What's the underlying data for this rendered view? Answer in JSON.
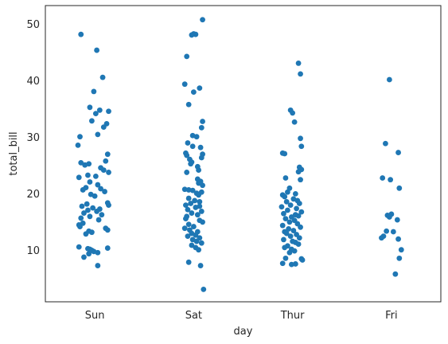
{
  "chart_data": {
    "type": "scatter",
    "style": "strip plot with jitter",
    "xlabel": "day",
    "ylabel": "total_bill",
    "categories": [
      "Sun",
      "Sat",
      "Thur",
      "Fri"
    ],
    "ylim": [
      0.9,
      53.3
    ],
    "yticks": [
      10,
      20,
      30,
      40,
      50
    ],
    "grid": false,
    "legend": "none",
    "point_color": "#1f77b4",
    "frame_color": "#262626",
    "points": {
      "Sun": [
        {
          "y": 48.2,
          "j": -0.14
        },
        {
          "y": 45.4,
          "j": 0.02
        },
        {
          "y": 40.6,
          "j": 0.08
        },
        {
          "y": 38.1,
          "j": -0.01
        },
        {
          "y": 35.3,
          "j": -0.05
        },
        {
          "y": 34.8,
          "j": 0.05
        },
        {
          "y": 34.6,
          "j": 0.14
        },
        {
          "y": 34.2,
          "j": 0.01
        },
        {
          "y": 32.9,
          "j": -0.03
        },
        {
          "y": 32.4,
          "j": 0.12
        },
        {
          "y": 31.8,
          "j": 0.09
        },
        {
          "y": 30.5,
          "j": 0.03
        },
        {
          "y": 30.1,
          "j": -0.15
        },
        {
          "y": 28.6,
          "j": -0.17
        },
        {
          "y": 27.0,
          "j": 0.13
        },
        {
          "y": 25.8,
          "j": 0.11
        },
        {
          "y": 25.5,
          "j": -0.14
        },
        {
          "y": 25.3,
          "j": -0.06
        },
        {
          "y": 25.1,
          "j": -0.1
        },
        {
          "y": 24.6,
          "j": 0.06
        },
        {
          "y": 24.2,
          "j": 0.09
        },
        {
          "y": 23.8,
          "j": 0.14
        },
        {
          "y": 23.3,
          "j": -0.07
        },
        {
          "y": 23.1,
          "j": 0.01
        },
        {
          "y": 22.9,
          "j": -0.16
        },
        {
          "y": 22.1,
          "j": -0.05
        },
        {
          "y": 21.6,
          "j": 0.03
        },
        {
          "y": 21.1,
          "j": -0.09
        },
        {
          "y": 20.9,
          "j": 0.06
        },
        {
          "y": 20.7,
          "j": -0.12
        },
        {
          "y": 20.4,
          "j": 0.1
        },
        {
          "y": 19.9,
          "j": -0.04
        },
        {
          "y": 19.6,
          "j": 0.0
        },
        {
          "y": 18.4,
          "j": 0.13
        },
        {
          "y": 18.2,
          "j": -0.08
        },
        {
          "y": 18.0,
          "j": 0.14
        },
        {
          "y": 17.8,
          "j": -0.13
        },
        {
          "y": 17.5,
          "j": -0.02
        },
        {
          "y": 17.3,
          "j": 0.05
        },
        {
          "y": 17.1,
          "j": -0.07
        },
        {
          "y": 16.9,
          "j": 0.02
        },
        {
          "y": 16.6,
          "j": -0.11
        },
        {
          "y": 16.3,
          "j": 0.07
        },
        {
          "y": 16.0,
          "j": -0.05
        },
        {
          "y": 15.7,
          "j": -0.14
        },
        {
          "y": 15.4,
          "j": 0.04
        },
        {
          "y": 14.8,
          "j": -0.12
        },
        {
          "y": 14.5,
          "j": -0.16
        },
        {
          "y": 14.2,
          "j": -0.15
        },
        {
          "y": 13.9,
          "j": 0.11
        },
        {
          "y": 13.6,
          "j": 0.13
        },
        {
          "y": 13.4,
          "j": -0.06
        },
        {
          "y": 13.2,
          "j": -0.03
        },
        {
          "y": 12.9,
          "j": -0.09
        },
        {
          "y": 10.6,
          "j": -0.16
        },
        {
          "y": 10.4,
          "j": 0.13
        },
        {
          "y": 10.3,
          "j": -0.07
        },
        {
          "y": 10.2,
          "j": -0.05
        },
        {
          "y": 10.0,
          "j": -0.03
        },
        {
          "y": 9.8,
          "j": -0.01
        },
        {
          "y": 9.6,
          "j": 0.03
        },
        {
          "y": 9.4,
          "j": -0.06
        },
        {
          "y": 8.8,
          "j": -0.11
        },
        {
          "y": 7.3,
          "j": 0.03
        }
      ],
      "Sat": [
        {
          "y": 50.8,
          "j": 0.09
        },
        {
          "y": 48.3,
          "j": 0.0
        },
        {
          "y": 48.2,
          "j": 0.02
        },
        {
          "y": 48.1,
          "j": -0.02
        },
        {
          "y": 44.3,
          "j": -0.07
        },
        {
          "y": 39.4,
          "j": -0.09
        },
        {
          "y": 38.7,
          "j": 0.06
        },
        {
          "y": 38.0,
          "j": 0.0
        },
        {
          "y": 35.8,
          "j": -0.05
        },
        {
          "y": 32.8,
          "j": 0.09
        },
        {
          "y": 31.7,
          "j": 0.08
        },
        {
          "y": 30.3,
          "j": -0.01
        },
        {
          "y": 30.1,
          "j": 0.03
        },
        {
          "y": 29.0,
          "j": -0.06
        },
        {
          "y": 28.4,
          "j": -0.01
        },
        {
          "y": 28.2,
          "j": 0.07
        },
        {
          "y": 27.2,
          "j": -0.08
        },
        {
          "y": 27.0,
          "j": 0.09
        },
        {
          "y": 26.8,
          "j": -0.07
        },
        {
          "y": 26.4,
          "j": 0.08
        },
        {
          "y": 26.1,
          "j": -0.04
        },
        {
          "y": 25.6,
          "j": -0.02
        },
        {
          "y": 25.3,
          "j": -0.03
        },
        {
          "y": 24.8,
          "j": 0.04
        },
        {
          "y": 24.2,
          "j": 0.05
        },
        {
          "y": 23.8,
          "j": -0.07
        },
        {
          "y": 22.6,
          "j": 0.04
        },
        {
          "y": 22.2,
          "j": 0.07
        },
        {
          "y": 21.9,
          "j": 0.05
        },
        {
          "y": 21.5,
          "j": 0.09
        },
        {
          "y": 20.8,
          "j": -0.09
        },
        {
          "y": 20.7,
          "j": -0.05
        },
        {
          "y": 20.6,
          "j": -0.01
        },
        {
          "y": 20.3,
          "j": 0.08
        },
        {
          "y": 20.1,
          "j": 0.03
        },
        {
          "y": 19.8,
          "j": 0.05
        },
        {
          "y": 19.2,
          "j": -0.05
        },
        {
          "y": 18.8,
          "j": 0.01
        },
        {
          "y": 18.6,
          "j": 0.06
        },
        {
          "y": 18.3,
          "j": -0.03
        },
        {
          "y": 18.0,
          "j": -0.08
        },
        {
          "y": 17.8,
          "j": 0.06
        },
        {
          "y": 17.6,
          "j": 0.02
        },
        {
          "y": 17.2,
          "j": -0.06
        },
        {
          "y": 16.9,
          "j": 0.08
        },
        {
          "y": 16.6,
          "j": -0.02
        },
        {
          "y": 16.3,
          "j": 0.04
        },
        {
          "y": 16.0,
          "j": -0.07
        },
        {
          "y": 15.6,
          "j": -0.08
        },
        {
          "y": 15.3,
          "j": 0.06
        },
        {
          "y": 15.0,
          "j": 0.09
        },
        {
          "y": 14.6,
          "j": -0.05
        },
        {
          "y": 14.2,
          "j": 0.0
        },
        {
          "y": 13.9,
          "j": -0.09
        },
        {
          "y": 13.6,
          "j": -0.04
        },
        {
          "y": 13.3,
          "j": 0.04
        },
        {
          "y": 13.0,
          "j": -0.02
        },
        {
          "y": 12.7,
          "j": 0.02
        },
        {
          "y": 12.5,
          "j": -0.06
        },
        {
          "y": 12.2,
          "j": 0.06
        },
        {
          "y": 11.9,
          "j": -0.01
        },
        {
          "y": 11.6,
          "j": 0.03
        },
        {
          "y": 11.3,
          "j": 0.08
        },
        {
          "y": 10.9,
          "j": -0.02
        },
        {
          "y": 10.5,
          "j": 0.02
        },
        {
          "y": 10.1,
          "j": 0.05
        },
        {
          "y": 7.9,
          "j": -0.05
        },
        {
          "y": 7.3,
          "j": 0.07
        },
        {
          "y": 3.1,
          "j": 0.1
        }
      ],
      "Thur": [
        {
          "y": 43.1,
          "j": 0.06
        },
        {
          "y": 41.2,
          "j": 0.08
        },
        {
          "y": 34.8,
          "j": -0.02
        },
        {
          "y": 34.3,
          "j": 0.0
        },
        {
          "y": 32.7,
          "j": 0.02
        },
        {
          "y": 29.8,
          "j": 0.08
        },
        {
          "y": 28.4,
          "j": 0.09
        },
        {
          "y": 27.2,
          "j": -0.1
        },
        {
          "y": 27.1,
          "j": -0.08
        },
        {
          "y": 24.7,
          "j": 0.07
        },
        {
          "y": 24.3,
          "j": 0.09
        },
        {
          "y": 23.9,
          "j": 0.06
        },
        {
          "y": 22.8,
          "j": -0.07
        },
        {
          "y": 22.5,
          "j": 0.08
        },
        {
          "y": 21.0,
          "j": -0.03
        },
        {
          "y": 20.3,
          "j": -0.05
        },
        {
          "y": 20.0,
          "j": 0.03
        },
        {
          "y": 19.8,
          "j": -0.1
        },
        {
          "y": 19.5,
          "j": -0.08
        },
        {
          "y": 19.1,
          "j": 0.01
        },
        {
          "y": 18.8,
          "j": 0.05
        },
        {
          "y": 18.6,
          "j": -0.06
        },
        {
          "y": 18.3,
          "j": 0.07
        },
        {
          "y": 18.0,
          "j": -0.02
        },
        {
          "y": 17.7,
          "j": -0.11
        },
        {
          "y": 17.4,
          "j": 0.04
        },
        {
          "y": 17.1,
          "j": -0.05
        },
        {
          "y": 16.8,
          "j": 0.09
        },
        {
          "y": 16.5,
          "j": -0.09
        },
        {
          "y": 16.3,
          "j": 0.03
        },
        {
          "y": 16.1,
          "j": 0.06
        },
        {
          "y": 15.9,
          "j": -0.01
        },
        {
          "y": 15.6,
          "j": -0.07
        },
        {
          "y": 15.3,
          "j": 0.02
        },
        {
          "y": 15.0,
          "j": -0.03
        },
        {
          "y": 14.7,
          "j": 0.05
        },
        {
          "y": 14.4,
          "j": -0.1
        },
        {
          "y": 14.1,
          "j": 0.08
        },
        {
          "y": 13.8,
          "j": -0.04
        },
        {
          "y": 13.5,
          "j": 0.01
        },
        {
          "y": 13.3,
          "j": -0.08
        },
        {
          "y": 13.0,
          "j": -0.06
        },
        {
          "y": 12.8,
          "j": 0.04
        },
        {
          "y": 12.5,
          "j": -0.02
        },
        {
          "y": 12.2,
          "j": 0.07
        },
        {
          "y": 11.9,
          "j": -0.09
        },
        {
          "y": 11.6,
          "j": 0.0
        },
        {
          "y": 11.4,
          "j": 0.03
        },
        {
          "y": 11.1,
          "j": 0.06
        },
        {
          "y": 10.8,
          "j": -0.05
        },
        {
          "y": 10.5,
          "j": -0.08
        },
        {
          "y": 10.2,
          "j": -0.01
        },
        {
          "y": 9.9,
          "j": 0.02
        },
        {
          "y": 9.6,
          "j": -0.03
        },
        {
          "y": 8.6,
          "j": -0.07
        },
        {
          "y": 8.5,
          "j": 0.09
        },
        {
          "y": 8.3,
          "j": 0.1
        },
        {
          "y": 7.7,
          "j": -0.1
        },
        {
          "y": 7.6,
          "j": 0.03
        },
        {
          "y": 7.5,
          "j": -0.01
        }
      ],
      "Fri": [
        {
          "y": 40.2,
          "j": -0.02
        },
        {
          "y": 28.9,
          "j": -0.06
        },
        {
          "y": 27.3,
          "j": 0.07
        },
        {
          "y": 22.8,
          "j": -0.09
        },
        {
          "y": 22.5,
          "j": -0.01
        },
        {
          "y": 21.0,
          "j": 0.08
        },
        {
          "y": 16.4,
          "j": 0.0
        },
        {
          "y": 16.2,
          "j": -0.04
        },
        {
          "y": 15.9,
          "j": -0.02
        },
        {
          "y": 15.4,
          "j": 0.06
        },
        {
          "y": 13.4,
          "j": -0.05
        },
        {
          "y": 13.3,
          "j": 0.02
        },
        {
          "y": 12.5,
          "j": -0.08
        },
        {
          "y": 12.2,
          "j": -0.1
        },
        {
          "y": 12.0,
          "j": 0.07
        },
        {
          "y": 10.1,
          "j": 0.1
        },
        {
          "y": 8.6,
          "j": 0.08
        },
        {
          "y": 5.8,
          "j": 0.04
        }
      ]
    }
  }
}
